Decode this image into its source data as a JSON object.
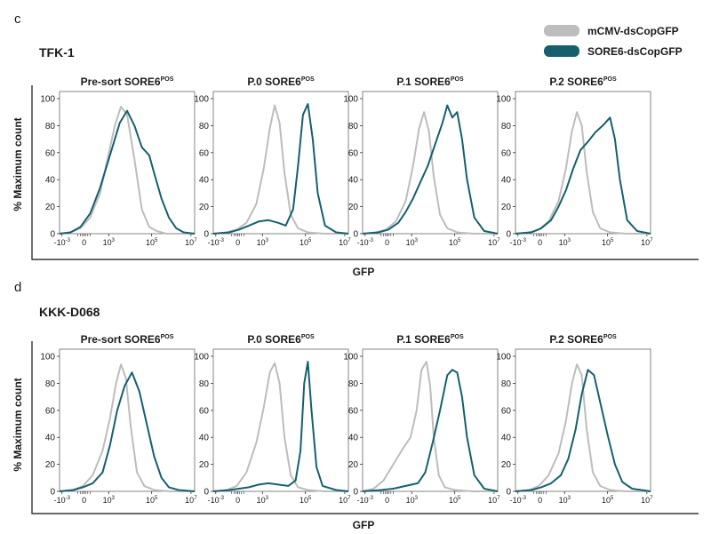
{
  "legend": {
    "items": [
      {
        "label": "mCMV-dsCopGFP",
        "color": "#bdbdbd"
      },
      {
        "label": "SORE6-dsCopGFP",
        "color": "#16606e"
      }
    ]
  },
  "colors": {
    "control": "#bdbdbd",
    "sore6": "#16606e",
    "axis": "#333333"
  },
  "common": {
    "ylabel": "% Maximum count",
    "xlabel": "GFP",
    "yticks": [
      "0",
      "20",
      "40",
      "60",
      "80",
      "100"
    ],
    "xticks": [
      "-10",
      "0",
      "10",
      "10",
      "10"
    ],
    "xtick_exponents": [
      "-3",
      "",
      "3",
      "5",
      "7"
    ],
    "title_prefixes": [
      "Pre-sort SORE6",
      "P.0 SORE6",
      "P.1 SORE6",
      "P.2 SORE6"
    ],
    "title_superscript": "POS"
  },
  "panels": [
    {
      "letter": "c",
      "cell_line": "TFK-1"
    },
    {
      "letter": "d",
      "cell_line": "KKK-D068"
    }
  ],
  "chart_data": [
    {
      "type": "line",
      "title": "TFK-1 Pre-sort SORE6POS",
      "xlabel": "GFP",
      "ylabel": "% Maximum count",
      "xlim": [
        -0.5,
        10.5
      ],
      "ylim": [
        0,
        100
      ],
      "series": [
        {
          "name": "mCMV-dsCopGFP",
          "x": [
            -0.5,
            0.4,
            1.2,
            2.0,
            2.8,
            3.4,
            4.0,
            4.5,
            5.0,
            5.6,
            6.2,
            6.8,
            7.4,
            8.2,
            9.5,
            10.5
          ],
          "y": [
            0,
            1,
            4,
            12,
            30,
            55,
            80,
            94,
            88,
            55,
            18,
            5,
            2,
            0,
            0,
            0
          ]
        },
        {
          "name": "SORE6-dsCopGFP",
          "x": [
            -0.5,
            0.4,
            1.2,
            2.0,
            2.8,
            3.6,
            4.4,
            5.0,
            5.6,
            6.2,
            6.8,
            7.2,
            7.8,
            8.4,
            9.0,
            9.6,
            10.5
          ],
          "y": [
            0,
            1,
            5,
            15,
            34,
            58,
            82,
            91,
            80,
            64,
            58,
            45,
            26,
            12,
            4,
            1,
            0
          ]
        }
      ]
    },
    {
      "type": "line",
      "title": "TFK-1 P.0 SORE6POS",
      "xlabel": "GFP",
      "ylabel": "% Maximum count",
      "xlim": [
        -0.5,
        10.5
      ],
      "ylim": [
        0,
        100
      ],
      "series": [
        {
          "name": "mCMV-dsCopGFP",
          "x": [
            -0.5,
            0.6,
            1.4,
            2.2,
            3.0,
            3.6,
            4.1,
            4.5,
            4.9,
            5.3,
            5.8,
            6.4,
            7.2,
            8.5,
            10.5
          ],
          "y": [
            0,
            1,
            3,
            8,
            22,
            48,
            78,
            95,
            82,
            45,
            14,
            4,
            1,
            0,
            0
          ]
        },
        {
          "name": "SORE6-dsCopGFP",
          "x": [
            -0.5,
            0.8,
            1.6,
            2.4,
            3.2,
            4.0,
            4.8,
            5.4,
            6.0,
            6.4,
            6.8,
            7.2,
            7.6,
            8.0,
            8.6,
            9.5,
            10.5
          ],
          "y": [
            0,
            1,
            3,
            6,
            9,
            10,
            8,
            6,
            18,
            50,
            88,
            96,
            70,
            30,
            6,
            1,
            0
          ]
        }
      ]
    },
    {
      "type": "line",
      "title": "TFK-1 P.1 SORE6POS",
      "xlabel": "GFP",
      "ylabel": "% Maximum count",
      "xlim": [
        -0.5,
        10.5
      ],
      "ylim": [
        0,
        100
      ],
      "series": [
        {
          "name": "mCMV-dsCopGFP",
          "x": [
            -0.5,
            0.6,
            1.4,
            2.2,
            3.0,
            3.6,
            4.1,
            4.5,
            4.9,
            5.3,
            5.8,
            6.4,
            7.2,
            8.5,
            10.5
          ],
          "y": [
            0,
            1,
            3,
            9,
            24,
            50,
            78,
            90,
            76,
            42,
            14,
            4,
            1,
            0,
            0
          ]
        },
        {
          "name": "SORE6-dsCopGFP",
          "x": [
            -0.5,
            0.8,
            1.6,
            2.4,
            3.0,
            3.6,
            4.2,
            4.8,
            5.4,
            6.0,
            6.4,
            6.8,
            7.2,
            7.6,
            8.0,
            8.6,
            9.4,
            10.5
          ],
          "y": [
            0,
            1,
            3,
            8,
            16,
            26,
            38,
            50,
            66,
            82,
            95,
            86,
            90,
            70,
            40,
            12,
            2,
            0
          ]
        }
      ]
    },
    {
      "type": "line",
      "title": "TFK-1 P.2 SORE6POS",
      "xlabel": "GFP",
      "ylabel": "% Maximum count",
      "xlim": [
        -0.5,
        10.5
      ],
      "ylim": [
        0,
        100
      ],
      "series": [
        {
          "name": "mCMV-dsCopGFP",
          "x": [
            -0.5,
            0.6,
            1.4,
            2.2,
            3.0,
            3.6,
            4.1,
            4.5,
            4.9,
            5.3,
            5.8,
            6.4,
            7.2,
            8.5,
            10.5
          ],
          "y": [
            0,
            1,
            3,
            9,
            24,
            48,
            76,
            90,
            80,
            46,
            16,
            4,
            1,
            0,
            0
          ]
        },
        {
          "name": "SORE6-dsCopGFP",
          "x": [
            -0.5,
            0.8,
            1.6,
            2.4,
            3.0,
            3.6,
            4.2,
            4.8,
            5.4,
            6.0,
            6.6,
            7.2,
            7.6,
            8.0,
            8.6,
            9.4,
            10.5
          ],
          "y": [
            0,
            1,
            4,
            10,
            20,
            32,
            48,
            62,
            68,
            75,
            80,
            86,
            70,
            40,
            10,
            2,
            0
          ]
        }
      ]
    },
    {
      "type": "line",
      "title": "KKK-D068 Pre-sort SORE6POS",
      "xlabel": "GFP",
      "ylabel": "% Maximum count",
      "xlim": [
        -0.5,
        10.5
      ],
      "ylim": [
        0,
        100
      ],
      "series": [
        {
          "name": "mCMV-dsCopGFP",
          "x": [
            -0.5,
            0.6,
            1.4,
            2.2,
            3.0,
            3.6,
            4.1,
            4.5,
            4.9,
            5.3,
            5.8,
            6.4,
            7.2,
            8.5,
            10.5
          ],
          "y": [
            0,
            1,
            4,
            12,
            30,
            54,
            80,
            94,
            84,
            48,
            14,
            4,
            1,
            0,
            0
          ]
        },
        {
          "name": "SORE6-dsCopGFP",
          "x": [
            -0.5,
            0.6,
            1.4,
            2.2,
            3.0,
            3.6,
            4.2,
            4.8,
            5.4,
            6.0,
            6.6,
            7.2,
            7.8,
            8.4,
            9.2,
            10.5
          ],
          "y": [
            0,
            1,
            3,
            6,
            14,
            34,
            60,
            78,
            88,
            74,
            50,
            26,
            10,
            3,
            1,
            0
          ]
        }
      ]
    },
    {
      "type": "line",
      "title": "KKK-D068 P.0 SORE6POS",
      "xlabel": "GFP",
      "ylabel": "% Maximum count",
      "xlim": [
        -0.5,
        10.5
      ],
      "ylim": [
        0,
        100
      ],
      "series": [
        {
          "name": "mCMV-dsCopGFP",
          "x": [
            -0.5,
            0.6,
            1.4,
            2.2,
            3.0,
            3.6,
            4.1,
            4.5,
            4.9,
            5.3,
            5.8,
            6.4,
            7.2,
            8.5,
            10.5
          ],
          "y": [
            0,
            1,
            4,
            14,
            36,
            62,
            88,
            95,
            80,
            40,
            12,
            3,
            1,
            0,
            0
          ]
        },
        {
          "name": "SORE6-dsCopGFP",
          "x": [
            -0.5,
            0.8,
            1.6,
            2.4,
            3.2,
            4.0,
            4.8,
            5.6,
            6.2,
            6.6,
            6.9,
            7.2,
            7.5,
            7.9,
            8.4,
            9.5,
            10.5
          ],
          "y": [
            0,
            1,
            2,
            3,
            5,
            6,
            5,
            4,
            8,
            30,
            80,
            96,
            60,
            18,
            4,
            1,
            0
          ]
        }
      ]
    },
    {
      "type": "line",
      "title": "KKK-D068 P.1 SORE6POS",
      "xlabel": "GFP",
      "ylabel": "% Maximum count",
      "xlim": [
        -0.5,
        10.5
      ],
      "ylim": [
        0,
        100
      ],
      "series": [
        {
          "name": "mCMV-dsCopGFP",
          "x": [
            -0.5,
            0.4,
            1.2,
            2.0,
            2.8,
            3.4,
            3.9,
            4.3,
            4.7,
            5.0,
            5.3,
            5.7,
            6.2,
            7.0,
            8.5,
            10.5
          ],
          "y": [
            0,
            2,
            8,
            20,
            32,
            40,
            60,
            90,
            96,
            78,
            40,
            12,
            3,
            1,
            0,
            0
          ]
        },
        {
          "name": "SORE6-dsCopGFP",
          "x": [
            -0.5,
            1.0,
            2.0,
            3.0,
            4.0,
            4.6,
            5.2,
            5.8,
            6.4,
            6.8,
            7.2,
            7.6,
            8.0,
            8.6,
            9.4,
            10.5
          ],
          "y": [
            0,
            1,
            2,
            4,
            6,
            14,
            36,
            60,
            86,
            90,
            88,
            70,
            40,
            12,
            2,
            0
          ]
        }
      ]
    },
    {
      "type": "line",
      "title": "KKK-D068 P.2 SORE6POS",
      "xlabel": "GFP",
      "ylabel": "% Maximum count",
      "xlim": [
        -0.5,
        10.5
      ],
      "ylim": [
        0,
        100
      ],
      "series": [
        {
          "name": "mCMV-dsCopGFP",
          "x": [
            -0.5,
            0.6,
            1.4,
            2.2,
            3.0,
            3.6,
            4.1,
            4.5,
            4.9,
            5.3,
            5.8,
            6.4,
            7.2,
            8.5,
            10.5
          ],
          "y": [
            0,
            1,
            4,
            12,
            28,
            52,
            80,
            94,
            86,
            46,
            14,
            4,
            1,
            0,
            0
          ]
        },
        {
          "name": "SORE6-dsCopGFP",
          "x": [
            -0.5,
            0.8,
            1.6,
            2.4,
            3.2,
            3.8,
            4.4,
            4.9,
            5.4,
            5.9,
            6.4,
            7.0,
            7.6,
            8.2,
            9.0,
            10.5
          ],
          "y": [
            0,
            1,
            3,
            6,
            12,
            24,
            46,
            72,
            90,
            86,
            66,
            42,
            20,
            7,
            2,
            0
          ]
        }
      ]
    }
  ]
}
